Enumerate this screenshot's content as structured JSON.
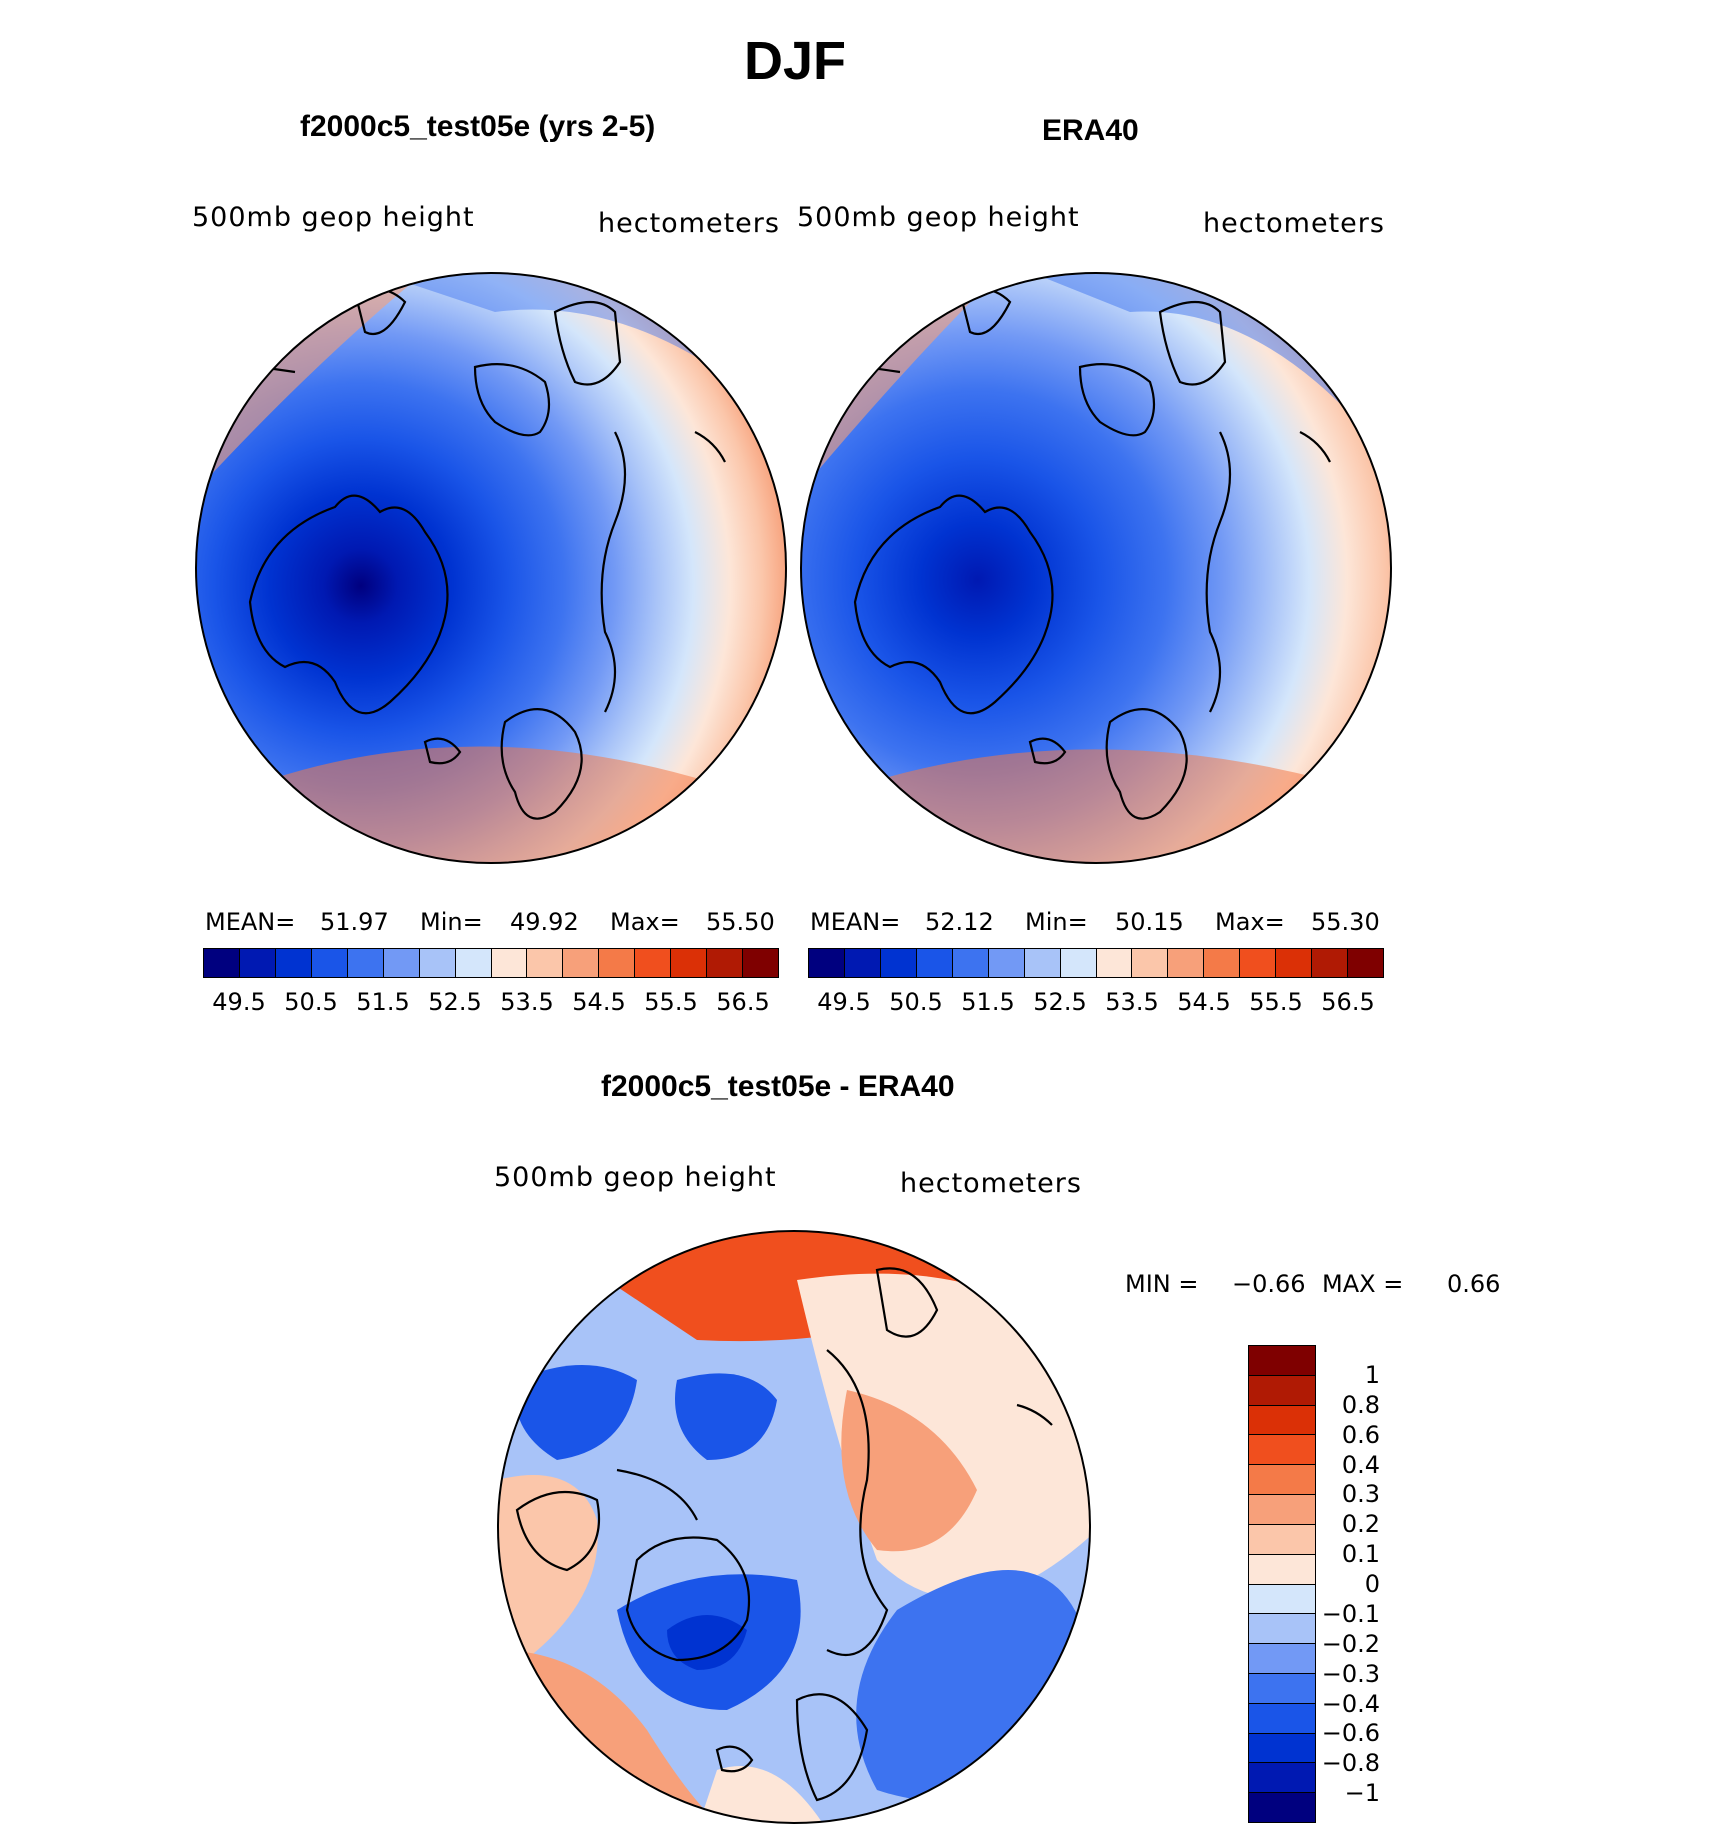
{
  "title": "DJF",
  "panels": {
    "left": {
      "title": "f2000c5_test05e (yrs 2-5)",
      "variable": "500mb geop height",
      "units": "hectometers",
      "stats": {
        "mean_label": "MEAN=",
        "mean": "51.97",
        "min_label": "Min=",
        "min": "49.92",
        "max_label": "Max=",
        "max": "55.50"
      }
    },
    "right": {
      "title": "ERA40",
      "variable": "500mb geop height",
      "units": "hectometers",
      "stats": {
        "mean_label": "MEAN=",
        "mean": "52.12",
        "min_label": "Min=",
        "min": "50.15",
        "max_label": "Max=",
        "max": "55.30"
      }
    },
    "diff": {
      "title": "f2000c5_test05e - ERA40",
      "variable": "500mb geop height",
      "units": "hectometers",
      "minmax": {
        "min_label": "MIN =",
        "min": "−0.66",
        "max_label": "MAX =",
        "max": "0.66"
      }
    }
  },
  "colorbar_main": {
    "colors": [
      "#00007f",
      "#0019b2",
      "#0033d1",
      "#1a55e8",
      "#3d73f0",
      "#7299f5",
      "#a8c3f8",
      "#d4e6fb",
      "#fde6d8",
      "#fbc6aa",
      "#f7a07a",
      "#f47a48",
      "#f04f1e",
      "#db3006",
      "#b01a04",
      "#7f0000"
    ],
    "tick_labels": [
      "49.5",
      "50.5",
      "51.5",
      "52.5",
      "53.5",
      "54.5",
      "55.5",
      "56.5"
    ]
  },
  "colorbar_diff": {
    "colors": [
      "#7f0000",
      "#b01a04",
      "#db3006",
      "#f04f1e",
      "#f47a48",
      "#f7a07a",
      "#fbc6aa",
      "#fde6d8",
      "#d4e6fb",
      "#a8c3f8",
      "#7299f5",
      "#3d73f0",
      "#1a55e8",
      "#0033d1",
      "#0019b2",
      "#00007f"
    ],
    "tick_labels": [
      "1",
      "0.8",
      "0.6",
      "0.4",
      "0.3",
      "0.2",
      "0.1",
      "0",
      "−0.1",
      "−0.2",
      "−0.3",
      "−0.4",
      "−0.6",
      "−0.8",
      "−1"
    ]
  }
}
